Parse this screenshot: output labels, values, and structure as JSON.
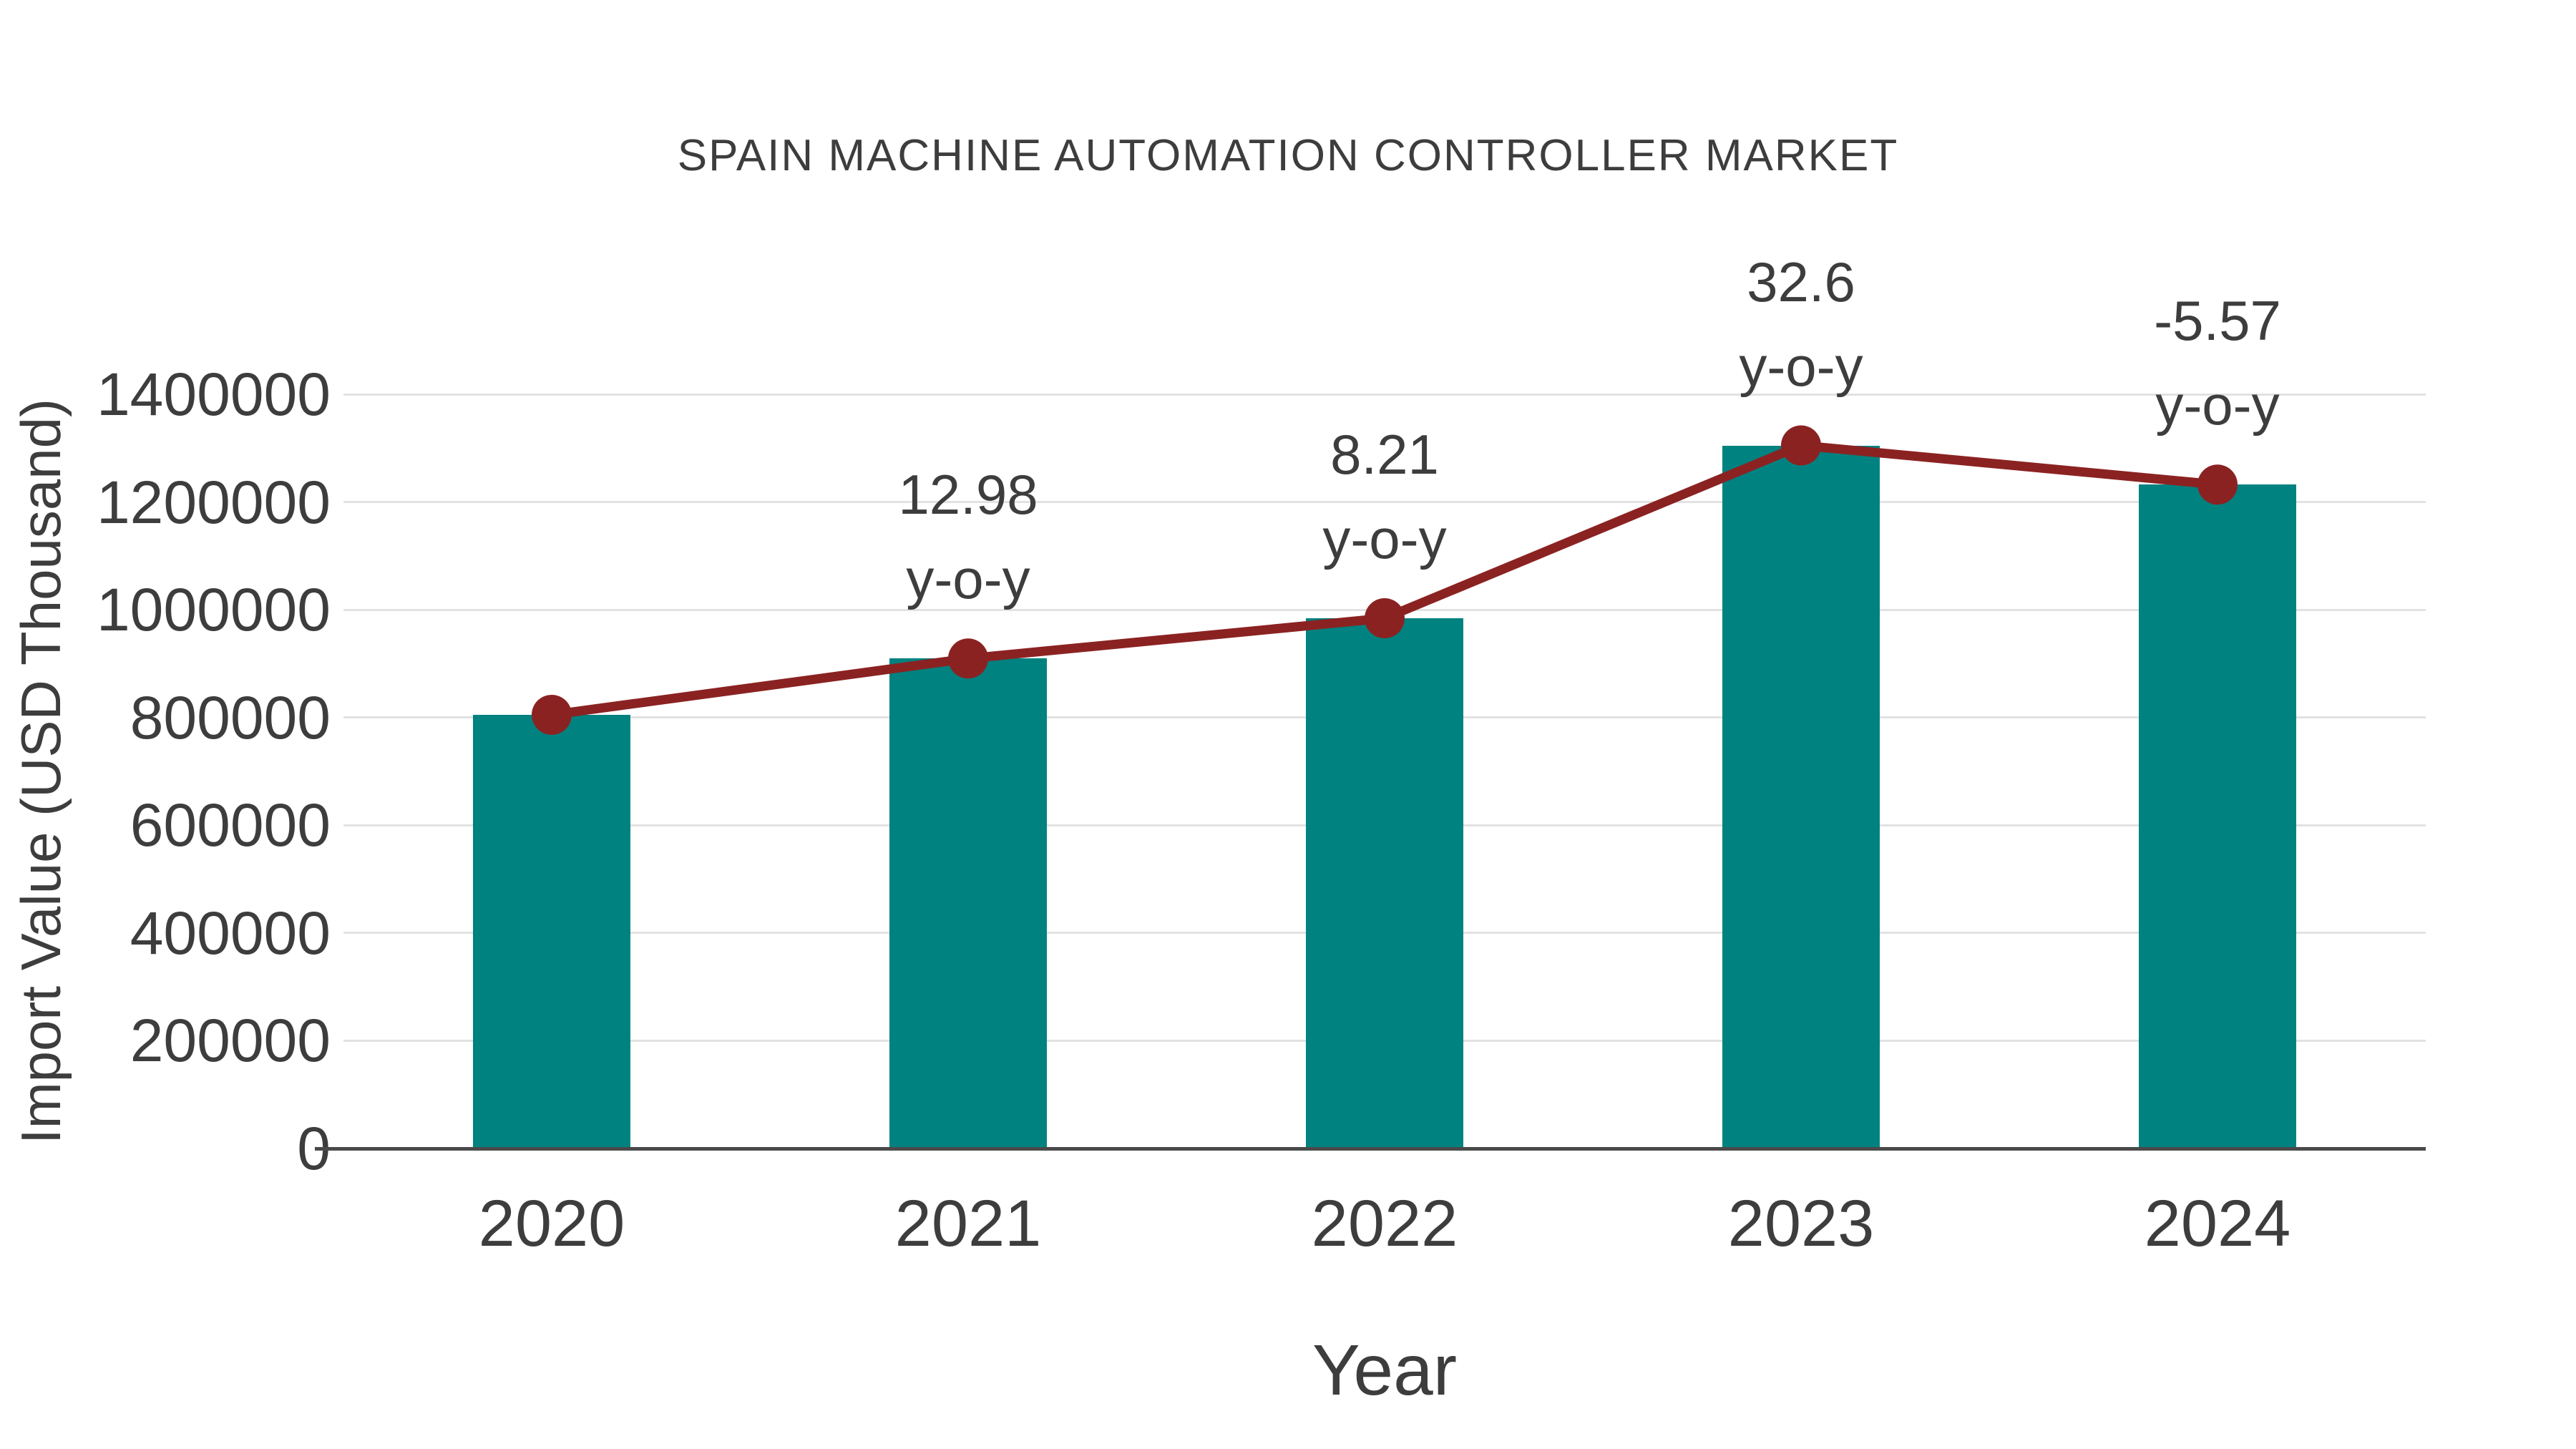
{
  "chart": {
    "title": "SPAIN MACHINE AUTOMATION CONTROLLER MARKET",
    "xlabel": "Year",
    "ylabel": "Import Value (USD Thousand)"
  },
  "chart_data": {
    "type": "bar",
    "title": "SPAIN MACHINE AUTOMATION CONTROLLER MARKET",
    "xlabel": "Year",
    "ylabel": "Import Value (USD Thousand)",
    "categories": [
      "2020",
      "2021",
      "2022",
      "2023",
      "2024"
    ],
    "series": [
      {
        "name": "Import Value (USD Thousand)",
        "type": "bar",
        "color": "#008280",
        "values": [
          805000,
          909500,
          984200,
          1305000,
          1232300
        ]
      },
      {
        "name": "y-o-y growth",
        "type": "line",
        "color": "#8B2222",
        "marker": "circle",
        "marker_color": "#8B2222",
        "values": [
          805000,
          909500,
          984200,
          1305000,
          1232300
        ],
        "yoy_percent": [
          null,
          12.98,
          8.21,
          32.6,
          -5.57
        ]
      }
    ],
    "annotations": [
      {
        "category": "2021",
        "line1": "12.98",
        "line2": "y-o-y"
      },
      {
        "category": "2022",
        "line1": "8.21",
        "line2": "y-o-y"
      },
      {
        "category": "2023",
        "line1": "32.6",
        "line2": "y-o-y"
      },
      {
        "category": "2024",
        "line1": "-5.57",
        "line2": "y-o-y"
      }
    ],
    "yticks": [
      0,
      200000,
      400000,
      600000,
      800000,
      1000000,
      1200000,
      1400000
    ],
    "ylim": [
      0,
      1400000
    ],
    "grid": "horizontal-only",
    "gridline_color": "#e2e2e2",
    "axis_line_color": "#4a4a4a",
    "text_color": "#3d3d3d",
    "legend": "none",
    "background": "#ffffff"
  }
}
